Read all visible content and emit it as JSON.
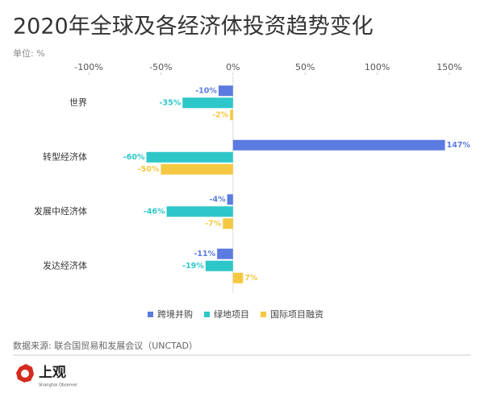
{
  "chart_data": {
    "type": "hbar",
    "title": "2020年全球及各经济体投资趋势变化",
    "subtitle": "单位: %",
    "categories": [
      "世界",
      "转型经济体",
      "发展中经济体",
      "发达经济体"
    ],
    "series": [
      {
        "name": "跨境并购",
        "color": "#5b7be0",
        "values": [
          -10,
          147,
          -4,
          -11
        ],
        "value_labels": [
          "-10%",
          "147%",
          "-4%",
          "-11%"
        ]
      },
      {
        "name": "绿地项目",
        "color": "#2ec7c9",
        "values": [
          -35,
          -60,
          -46,
          -19
        ],
        "value_labels": [
          "-35%",
          "-60%",
          "-46%",
          "-19%"
        ]
      },
      {
        "name": "国际项目融资",
        "color": "#f5c842",
        "values": [
          -2,
          -50,
          -7,
          7
        ],
        "value_labels": [
          "-2%",
          "-50%",
          "-7%",
          "7%"
        ]
      }
    ],
    "xlim": [
      -100,
      150
    ],
    "xticks": [
      {
        "value": -100,
        "label": "-100%"
      },
      {
        "value": -50,
        "label": "-50%"
      },
      {
        "value": 0,
        "label": "0%"
      },
      {
        "value": 50,
        "label": "50%"
      },
      {
        "value": 100,
        "label": "100%"
      },
      {
        "value": 150,
        "label": "150%"
      }
    ],
    "grid": false,
    "legend": "bottom"
  },
  "source": "数据来源: 联合国贸易和发展会议（UNCTAD）",
  "logo": {
    "name": "上观",
    "subtitle": "Shanghai Observer"
  }
}
